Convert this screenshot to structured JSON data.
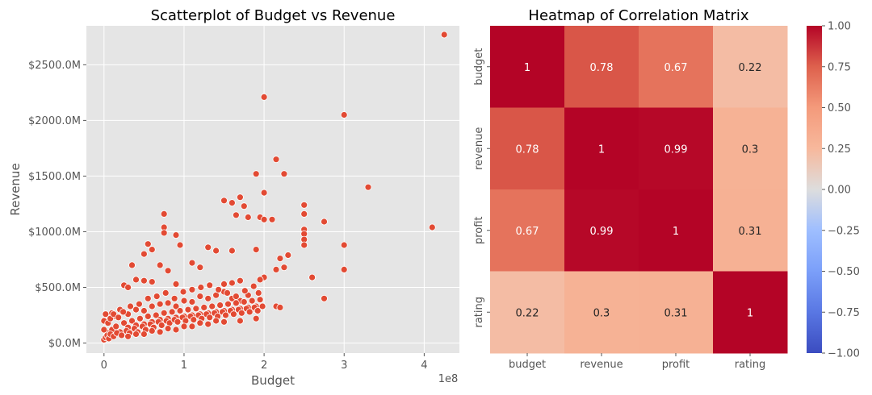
{
  "chart_data": [
    {
      "type": "scatter",
      "title": "Scatterplot of Budget vs Revenue",
      "xlabel": "Budget",
      "ylabel": "Revenue",
      "x_offset_label": "1e8",
      "xlim": [
        -0.22,
        4.44
      ],
      "ylim": [
        -90,
        2850
      ],
      "xticks": [
        0,
        1,
        2,
        3,
        4
      ],
      "xtick_labels": [
        "0",
        "1",
        "2",
        "3",
        "4"
      ],
      "yticks": [
        0,
        500,
        1000,
        1500,
        2000,
        2500
      ],
      "ytick_labels": [
        "$0.0M",
        "$500.0M",
        "$1000.0M",
        "$1500.0M",
        "$2000.0M",
        "$2500.0M"
      ],
      "grid": true,
      "point_color": "#E24A33",
      "x_units": "budget (1e8 USD)",
      "y_units": "revenue (millions USD)",
      "points": [
        [
          4.25,
          2770
        ],
        [
          2.0,
          2210
        ],
        [
          3.0,
          2050
        ],
        [
          2.15,
          1650
        ],
        [
          1.9,
          1520
        ],
        [
          2.25,
          1520
        ],
        [
          3.3,
          1400
        ],
        [
          2.0,
          1350
        ],
        [
          1.5,
          1280
        ],
        [
          1.6,
          1260
        ],
        [
          1.7,
          1310
        ],
        [
          1.75,
          1230
        ],
        [
          2.5,
          1240
        ],
        [
          2.5,
          1160
        ],
        [
          1.65,
          1150
        ],
        [
          1.8,
          1130
        ],
        [
          1.95,
          1130
        ],
        [
          2.0,
          1110
        ],
        [
          2.1,
          1110
        ],
        [
          2.75,
          1090
        ],
        [
          0.75,
          1160
        ],
        [
          0.55,
          890
        ],
        [
          0.75,
          1040
        ],
        [
          0.75,
          990
        ],
        [
          0.9,
          970
        ],
        [
          0.95,
          880
        ],
        [
          0.6,
          840
        ],
        [
          0.5,
          800
        ],
        [
          1.3,
          860
        ],
        [
          1.4,
          830
        ],
        [
          1.6,
          830
        ],
        [
          1.9,
          840
        ],
        [
          2.5,
          1020
        ],
        [
          2.5,
          980
        ],
        [
          2.5,
          930
        ],
        [
          2.5,
          880
        ],
        [
          3.0,
          880
        ],
        [
          4.1,
          1040
        ],
        [
          3.0,
          660
        ],
        [
          2.6,
          590
        ],
        [
          2.75,
          400
        ],
        [
          2.15,
          330
        ],
        [
          2.2,
          320
        ],
        [
          0.35,
          700
        ],
        [
          0.7,
          700
        ],
        [
          0.4,
          570
        ],
        [
          0.5,
          560
        ],
        [
          0.6,
          550
        ],
        [
          0.8,
          650
        ],
        [
          0.25,
          520
        ],
        [
          0.3,
          500
        ],
        [
          1.1,
          720
        ],
        [
          1.2,
          680
        ],
        [
          2.15,
          660
        ],
        [
          2.2,
          760
        ],
        [
          2.3,
          790
        ],
        [
          2.25,
          680
        ],
        [
          2.0,
          590
        ],
        [
          1.95,
          570
        ],
        [
          1.7,
          560
        ],
        [
          1.6,
          540
        ],
        [
          1.5,
          530
        ],
        [
          0.9,
          530
        ],
        [
          0.1,
          270
        ],
        [
          0.15,
          240
        ],
        [
          0.2,
          300
        ],
        [
          0.3,
          260
        ],
        [
          0.4,
          300
        ],
        [
          0.5,
          290
        ],
        [
          0.6,
          330
        ],
        [
          0.7,
          350
        ],
        [
          0.8,
          360
        ],
        [
          0.9,
          330
        ],
        [
          1.0,
          380
        ],
        [
          1.1,
          370
        ],
        [
          1.2,
          420
        ],
        [
          1.3,
          400
        ],
        [
          1.4,
          430
        ],
        [
          1.5,
          460
        ],
        [
          1.6,
          400
        ],
        [
          1.7,
          380
        ],
        [
          1.8,
          430
        ],
        [
          1.9,
          300
        ],
        [
          0.05,
          90
        ],
        [
          0.1,
          120
        ],
        [
          0.15,
          150
        ],
        [
          0.2,
          100
        ],
        [
          0.25,
          180
        ],
        [
          0.3,
          140
        ],
        [
          0.35,
          200
        ],
        [
          0.4,
          160
        ],
        [
          0.45,
          220
        ],
        [
          0.5,
          170
        ],
        [
          0.55,
          240
        ],
        [
          0.6,
          190
        ],
        [
          0.65,
          250
        ],
        [
          0.7,
          210
        ],
        [
          0.75,
          270
        ],
        [
          0.8,
          220
        ],
        [
          0.85,
          280
        ],
        [
          0.9,
          230
        ],
        [
          0.95,
          290
        ],
        [
          1.0,
          240
        ],
        [
          1.05,
          300
        ],
        [
          1.1,
          250
        ],
        [
          1.15,
          310
        ],
        [
          1.2,
          260
        ],
        [
          1.25,
          320
        ],
        [
          1.3,
          270
        ],
        [
          1.35,
          330
        ],
        [
          1.4,
          280
        ],
        [
          1.45,
          340
        ],
        [
          1.5,
          290
        ],
        [
          1.55,
          350
        ],
        [
          1.6,
          300
        ],
        [
          1.65,
          360
        ],
        [
          1.7,
          310
        ],
        [
          1.75,
          370
        ],
        [
          1.8,
          320
        ],
        [
          1.85,
          380
        ],
        [
          1.9,
          330
        ],
        [
          1.95,
          390
        ],
        [
          0.0,
          30
        ],
        [
          0.02,
          50
        ],
        [
          0.04,
          70
        ],
        [
          0.06,
          40
        ],
        [
          0.08,
          80
        ],
        [
          0.12,
          60
        ],
        [
          0.16,
          90
        ],
        [
          0.22,
          70
        ],
        [
          0.28,
          110
        ],
        [
          0.32,
          90
        ],
        [
          0.38,
          130
        ],
        [
          0.42,
          100
        ],
        [
          0.48,
          150
        ],
        [
          0.52,
          120
        ],
        [
          0.58,
          170
        ],
        [
          0.62,
          140
        ],
        [
          0.68,
          190
        ],
        [
          0.72,
          160
        ],
        [
          0.78,
          200
        ],
        [
          0.82,
          180
        ],
        [
          0.88,
          210
        ],
        [
          0.92,
          190
        ],
        [
          0.98,
          230
        ],
        [
          1.02,
          200
        ],
        [
          1.08,
          240
        ],
        [
          1.12,
          210
        ],
        [
          1.18,
          250
        ],
        [
          1.22,
          220
        ],
        [
          1.28,
          260
        ],
        [
          1.32,
          230
        ],
        [
          1.38,
          270
        ],
        [
          1.42,
          240
        ],
        [
          1.48,
          280
        ],
        [
          1.52,
          250
        ],
        [
          1.58,
          290
        ],
        [
          1.62,
          260
        ],
        [
          1.68,
          300
        ],
        [
          1.72,
          270
        ],
        [
          1.78,
          310
        ],
        [
          1.82,
          280
        ],
        [
          1.88,
          320
        ],
        [
          1.92,
          290
        ],
        [
          1.98,
          330
        ],
        [
          0.0,
          120
        ],
        [
          0.0,
          200
        ],
        [
          0.02,
          260
        ],
        [
          0.05,
          180
        ],
        [
          0.08,
          220
        ],
        [
          0.12,
          260
        ],
        [
          0.18,
          230
        ],
        [
          0.24,
          280
        ],
        [
          0.33,
          330
        ],
        [
          0.44,
          350
        ],
        [
          0.55,
          400
        ],
        [
          0.66,
          420
        ],
        [
          0.77,
          450
        ],
        [
          0.88,
          400
        ],
        [
          0.99,
          460
        ],
        [
          1.1,
          480
        ],
        [
          1.21,
          500
        ],
        [
          1.32,
          520
        ],
        [
          1.43,
          480
        ],
        [
          1.54,
          450
        ],
        [
          1.65,
          420
        ],
        [
          1.76,
          470
        ],
        [
          1.87,
          510
        ],
        [
          1.93,
          450
        ],
        [
          0.3,
          60
        ],
        [
          0.5,
          80
        ],
        [
          0.7,
          100
        ],
        [
          0.9,
          120
        ],
        [
          1.1,
          150
        ],
        [
          1.3,
          170
        ],
        [
          1.5,
          190
        ],
        [
          1.7,
          200
        ],
        [
          1.9,
          220
        ],
        [
          1.0,
          150
        ],
        [
          1.2,
          180
        ],
        [
          1.4,
          200
        ],
        [
          0.6,
          110
        ],
        [
          0.8,
          130
        ],
        [
          0.4,
          80
        ]
      ]
    },
    {
      "type": "heatmap",
      "title": "Heatmap of Correlation Matrix",
      "labels": [
        "budget",
        "revenue",
        "profit",
        "rating"
      ],
      "values": [
        [
          1,
          0.78,
          0.67,
          0.22
        ],
        [
          0.78,
          1,
          0.99,
          0.3
        ],
        [
          0.67,
          0.99,
          1,
          0.31
        ],
        [
          0.22,
          0.3,
          0.31,
          1
        ]
      ],
      "cell_labels": [
        [
          "1",
          "0.78",
          "0.67",
          "0.22"
        ],
        [
          "0.78",
          "1",
          "0.99",
          "0.3"
        ],
        [
          "0.67",
          "0.99",
          "1",
          "0.31"
        ],
        [
          "0.22",
          "0.3",
          "0.31",
          "1"
        ]
      ],
      "colormap": "coolwarm",
      "vmin": -1,
      "vmax": 1,
      "colorbar_ticks": [
        1.0,
        0.75,
        0.5,
        0.25,
        0.0,
        -0.25,
        -0.5,
        -0.75,
        -1.0
      ],
      "colorbar_tick_labels": [
        "1.00",
        "0.75",
        "0.50",
        "0.25",
        "0.00",
        "−0.25",
        "−0.50",
        "−0.75",
        "−1.00"
      ]
    }
  ]
}
